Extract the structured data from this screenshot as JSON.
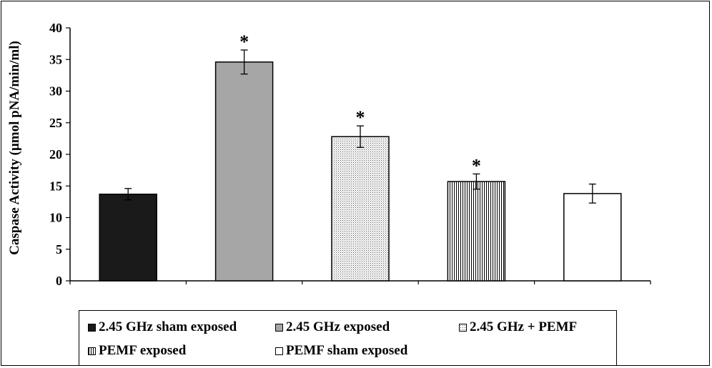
{
  "chart_data": {
    "type": "bar",
    "categories": [
      "2.45 GHz sham exposed",
      "2.45 GHz exposed",
      "2.45 GHz + PEMF",
      "PEMF exposed",
      "PEMF sham exposed"
    ],
    "series": [
      {
        "values": [
          13.7,
          34.6,
          22.8,
          15.7,
          13.8
        ],
        "errors": [
          0.9,
          1.9,
          1.7,
          1.2,
          1.5
        ],
        "significance": [
          "",
          "*",
          "*",
          "*",
          ""
        ]
      }
    ],
    "ylabel": "Caspase Activity (µmol pNA/min/ml)",
    "xlabel": "",
    "ylim": [
      0,
      40
    ],
    "yticks": [
      "0",
      "5",
      "10",
      "15",
      "20",
      "25",
      "30",
      "35",
      "40"
    ],
    "grid": false,
    "legend_position": "bottom",
    "legend": [
      {
        "label": "2.45 GHz sham exposed",
        "pattern": "solid-black"
      },
      {
        "label": "2.45 GHz exposed",
        "pattern": "solid-gray"
      },
      {
        "label": "2.45 GHz + PEMF",
        "pattern": "dots"
      },
      {
        "label": "PEMF exposed",
        "pattern": "vertical-lines"
      },
      {
        "label": "PEMF sham exposed",
        "pattern": "white"
      }
    ]
  },
  "colors": {
    "black": "#1a1a1a",
    "gray": "#a6a6a6",
    "white": "#ffffff",
    "axis": "#000000"
  }
}
